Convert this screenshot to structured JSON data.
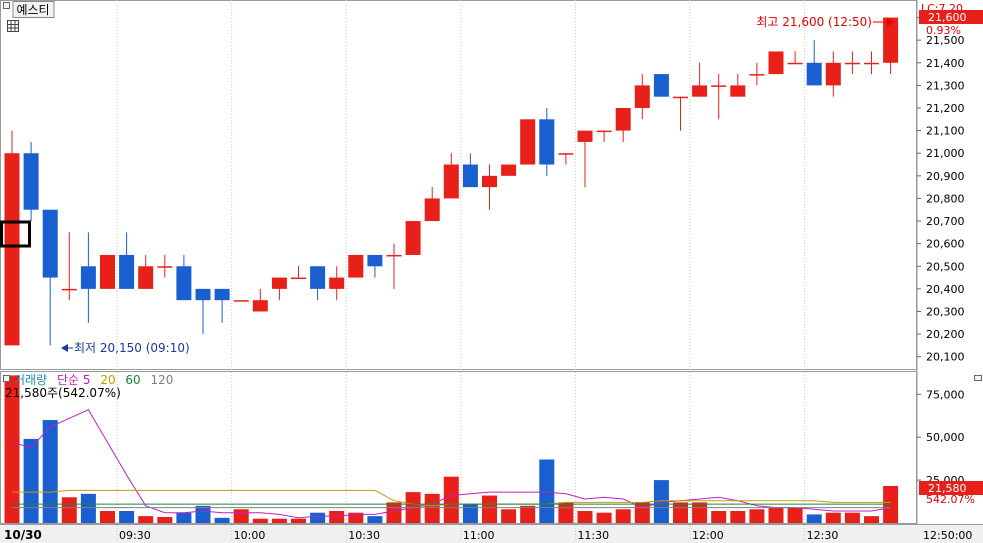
{
  "symbol": {
    "name": "예스티"
  },
  "high_marker": "최고 21,600 (12:50)",
  "low_marker": "최저 20,150 (09:10)",
  "lc_label": "LC:7.20",
  "price_box": {
    "price": "21,600",
    "change_pct": "0.93%"
  },
  "volume_pane": {
    "legend": [
      {
        "text": "거래량",
        "color": "#1f8fb0"
      },
      {
        "text": "단순 5",
        "color": "#c020c0"
      },
      {
        "text": "20",
        "color": "#c0a000"
      },
      {
        "text": "60",
        "color": "#208040"
      },
      {
        "text": "120",
        "color": "#808080"
      }
    ],
    "current_text": "21,580주(542.07%)",
    "box_value": "21,580",
    "box_pct": "542.07%"
  },
  "date_label": "10/30",
  "colors": {
    "up": "#e8201a",
    "down": "#1a5fd0",
    "low_marker": "#1a3aa0",
    "high_marker": "#e00000"
  },
  "chart_data": [
    {
      "type": "candlestick",
      "interval_minutes": 5,
      "time_ticks": [
        "09:30",
        "10:00",
        "10:30",
        "11:00",
        "11:30",
        "12:00",
        "12:30",
        "12:50:00"
      ],
      "y_ticks": [
        "20,100",
        "20,200",
        "20,300",
        "20,400",
        "20,500",
        "20,600",
        "20,700",
        "20,800",
        "20,900",
        "21,000",
        "21,100",
        "21,200",
        "21,300",
        "21,400",
        "21,500",
        "21,600"
      ],
      "ylim": [
        20050,
        21660
      ],
      "candles": [
        {
          "o": 20150,
          "h": 21100,
          "l": 20150,
          "c": 21000
        },
        {
          "o": 21000,
          "h": 21050,
          "l": 20700,
          "c": 20750
        },
        {
          "o": 20750,
          "h": 20750,
          "l": 20150,
          "c": 20450
        },
        {
          "o": 20400,
          "h": 20650,
          "l": 20350,
          "c": 20400
        },
        {
          "o": 20500,
          "h": 20650,
          "l": 20250,
          "c": 20400
        },
        {
          "o": 20400,
          "h": 20550,
          "l": 20400,
          "c": 20550
        },
        {
          "o": 20550,
          "h": 20650,
          "l": 20400,
          "c": 20400
        },
        {
          "o": 20400,
          "h": 20550,
          "l": 20400,
          "c": 20500
        },
        {
          "o": 20500,
          "h": 20550,
          "l": 20450,
          "c": 20500
        },
        {
          "o": 20500,
          "h": 20550,
          "l": 20350,
          "c": 20350
        },
        {
          "o": 20400,
          "h": 20400,
          "l": 20200,
          "c": 20350
        },
        {
          "o": 20400,
          "h": 20400,
          "l": 20250,
          "c": 20350
        },
        {
          "o": 20350,
          "h": 20350,
          "l": 20350,
          "c": 20350
        },
        {
          "o": 20300,
          "h": 20400,
          "l": 20300,
          "c": 20350
        },
        {
          "o": 20400,
          "h": 20450,
          "l": 20350,
          "c": 20450
        },
        {
          "o": 20450,
          "h": 20500,
          "l": 20450,
          "c": 20450
        },
        {
          "o": 20500,
          "h": 20500,
          "l": 20350,
          "c": 20400
        },
        {
          "o": 20400,
          "h": 20500,
          "l": 20350,
          "c": 20450
        },
        {
          "o": 20450,
          "h": 20550,
          "l": 20450,
          "c": 20550
        },
        {
          "o": 20550,
          "h": 20550,
          "l": 20450,
          "c": 20500
        },
        {
          "o": 20550,
          "h": 20600,
          "l": 20400,
          "c": 20550
        },
        {
          "o": 20550,
          "h": 20700,
          "l": 20550,
          "c": 20700
        },
        {
          "o": 20700,
          "h": 20850,
          "l": 20700,
          "c": 20800
        },
        {
          "o": 20800,
          "h": 21000,
          "l": 20800,
          "c": 20950
        },
        {
          "o": 20950,
          "h": 21000,
          "l": 20850,
          "c": 20850
        },
        {
          "o": 20850,
          "h": 20950,
          "l": 20750,
          "c": 20900
        },
        {
          "o": 20900,
          "h": 20950,
          "l": 20900,
          "c": 20950
        },
        {
          "o": 20950,
          "h": 21150,
          "l": 20950,
          "c": 21150
        },
        {
          "o": 21150,
          "h": 21200,
          "l": 20900,
          "c": 20950
        },
        {
          "o": 21000,
          "h": 21000,
          "l": 20950,
          "c": 21000
        },
        {
          "o": 21050,
          "h": 21100,
          "l": 20850,
          "c": 21100
        },
        {
          "o": 21100,
          "h": 21100,
          "l": 21050,
          "c": 21100
        },
        {
          "o": 21100,
          "h": 21200,
          "l": 21050,
          "c": 21200
        },
        {
          "o": 21200,
          "h": 21350,
          "l": 21150,
          "c": 21300
        },
        {
          "o": 21350,
          "h": 21350,
          "l": 21250,
          "c": 21250
        },
        {
          "o": 21250,
          "h": 21250,
          "l": 21100,
          "c": 21250
        },
        {
          "o": 21250,
          "h": 21400,
          "l": 21250,
          "c": 21300
        },
        {
          "o": 21300,
          "h": 21350,
          "l": 21150,
          "c": 21300
        },
        {
          "o": 21250,
          "h": 21350,
          "l": 21250,
          "c": 21300
        },
        {
          "o": 21350,
          "h": 21400,
          "l": 21300,
          "c": 21350
        },
        {
          "o": 21350,
          "h": 21450,
          "l": 21350,
          "c": 21450
        },
        {
          "o": 21400,
          "h": 21450,
          "l": 21400,
          "c": 21400
        },
        {
          "o": 21400,
          "h": 21500,
          "l": 21300,
          "c": 21300
        },
        {
          "o": 21300,
          "h": 21450,
          "l": 21250,
          "c": 21400
        },
        {
          "o": 21400,
          "h": 21450,
          "l": 21350,
          "c": 21400
        },
        {
          "o": 21400,
          "h": 21450,
          "l": 21350,
          "c": 21400
        },
        {
          "o": 21400,
          "h": 21600,
          "l": 21350,
          "c": 21600
        }
      ]
    },
    {
      "type": "bar",
      "series_name": "거래량",
      "y_ticks": [
        "25,000",
        "50,000",
        "75,000"
      ],
      "ylim": [
        0,
        88000
      ],
      "values": [
        86000,
        49000,
        60000,
        15000,
        17000,
        7000,
        7000,
        4000,
        3500,
        6000,
        10000,
        3000,
        8000,
        2500,
        2500,
        2500,
        6000,
        7000,
        6000,
        4000,
        12000,
        18000,
        17000,
        27000,
        11000,
        16000,
        8000,
        10000,
        37000,
        12000,
        7000,
        6000,
        8000,
        12000,
        25000,
        12000,
        12000,
        7000,
        7000,
        8000,
        9000,
        9000,
        5000,
        6000,
        6000,
        4000,
        21580
      ],
      "ma_lines": [
        {
          "period": 5,
          "color": "#c020c0",
          "values": [
            47000,
            44000,
            56000,
            61000,
            66000,
            47000,
            28000,
            10000,
            6000,
            6000,
            7000,
            6000,
            6000,
            6000,
            5000,
            3000,
            4000,
            4000,
            5000,
            5000,
            7000,
            9000,
            11000,
            16000,
            17000,
            18000,
            18000,
            18000,
            18000,
            17000,
            14000,
            15000,
            14000,
            9000,
            12000,
            13000,
            14000,
            15000,
            13000,
            10000,
            9000,
            9000,
            8000,
            7000,
            7000,
            7000,
            9000
          ]
        },
        {
          "period": 20,
          "color": "#c0a000",
          "values": [
            18000,
            18000,
            18000,
            19000,
            19000,
            19000,
            19000,
            19000,
            19000,
            19000,
            19000,
            19000,
            19000,
            19000,
            19000,
            19000,
            19000,
            19000,
            19000,
            19000,
            13000,
            11000,
            10000,
            11000,
            11000,
            11000,
            11000,
            11000,
            11000,
            12000,
            12000,
            12000,
            12000,
            12000,
            13000,
            13000,
            13000,
            13000,
            13000,
            13000,
            13000,
            13000,
            13000,
            12000,
            12000,
            12000,
            12000
          ]
        },
        {
          "period": 60,
          "color": "#208040",
          "values": [
            11000,
            11000,
            11000,
            11000,
            11000,
            11000,
            11000,
            11000,
            11000,
            11000,
            11000,
            11000,
            11000,
            11000,
            11000,
            11000,
            11000,
            11000,
            11000,
            11000,
            11000,
            11000,
            11000,
            11000,
            11000,
            11000,
            11000,
            11000,
            11000,
            11000,
            11000,
            11000,
            11000,
            11000,
            11000,
            11000,
            11000,
            11000,
            11000,
            11000,
            11000,
            11000,
            11000,
            11000,
            11000,
            11000,
            11000
          ]
        },
        {
          "period": 120,
          "color": "#808080",
          "values": [
            9000,
            9000,
            9000,
            9000,
            9000,
            9000,
            9000,
            9000,
            9000,
            9000,
            9000,
            9000,
            9000,
            9000,
            9000,
            9000,
            9000,
            9000,
            9000,
            9000,
            9000,
            9000,
            9000,
            9000,
            9000,
            9000,
            9000,
            9000,
            9000,
            9000,
            9000,
            9000,
            9000,
            9000,
            9000,
            9000,
            9000,
            9000,
            9000,
            9000,
            9000,
            9000,
            9000,
            9000,
            9000,
            9000,
            9000
          ]
        }
      ]
    }
  ]
}
